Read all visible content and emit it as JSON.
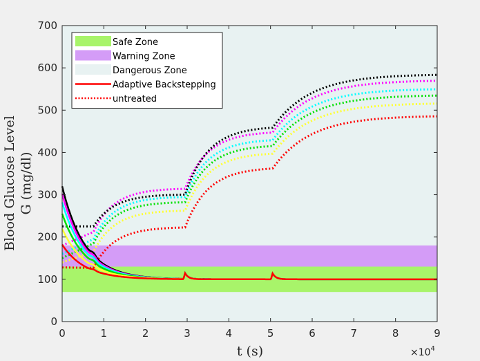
{
  "chart_data": {
    "type": "line",
    "title": "",
    "xlabel": "t (s)",
    "ylabel_line1": "Blood Glucose Level",
    "ylabel_line2": "G (mg/dl)",
    "x_exponent_label": "×10",
    "x_exponent_power": "4",
    "xlim": [
      0,
      9
    ],
    "ylim": [
      0,
      700
    ],
    "xticks": [
      "0",
      "1",
      "2",
      "3",
      "4",
      "5",
      "6",
      "7",
      "8",
      "9"
    ],
    "yticks": [
      "0",
      "100",
      "200",
      "300",
      "400",
      "500",
      "600",
      "700"
    ],
    "grid": false,
    "legend_position": "top-left",
    "zones": [
      {
        "name": "Safe Zone",
        "y0": 70,
        "y1": 130,
        "color": "#a8f46a"
      },
      {
        "name": "Warning Zone",
        "y0": 130,
        "y1": 180,
        "color": "#d49cf7"
      },
      {
        "name": "Dangerous Zone",
        "y0": 0,
        "y1": 700,
        "color": "#e8f2f2"
      }
    ],
    "legend": [
      {
        "label": "Safe Zone",
        "kind": "patch",
        "color": "#a8f46a"
      },
      {
        "label": "Warning Zone",
        "kind": "patch",
        "color": "#d49cf7"
      },
      {
        "label": "Dangerous Zone",
        "kind": "patch",
        "color": "#e8f2f2"
      },
      {
        "label": "Adaptive Backstepping",
        "kind": "solid",
        "color": "#ff0000"
      },
      {
        "label": "untreated",
        "kind": "dotted",
        "color": "#ff0000"
      }
    ],
    "untreated_series": [
      {
        "color": "#ff0000",
        "initial": 128,
        "plateaus": [
          127,
          245,
          365,
          487
        ]
      },
      {
        "color": "#ffff33",
        "initial": 140,
        "plateaus": [
          165,
          285,
          400,
          517
        ]
      },
      {
        "color": "#00e000",
        "initial": 150,
        "plateaus": [
          185,
          305,
          418,
          536
        ]
      },
      {
        "color": "#00ffff",
        "initial": 160,
        "plateaus": [
          195,
          318,
          432,
          551
        ]
      },
      {
        "color": "#ff00ff",
        "initial": 180,
        "plateaus": [
          212,
          338,
          450,
          571
        ]
      },
      {
        "color": "#000000",
        "initial": 225,
        "plateaus": [
          225,
          318,
          462,
          585
        ]
      }
    ],
    "controlled_series": [
      {
        "color": "#000000",
        "initial": 320,
        "final": 100
      },
      {
        "color": "#ff00ff",
        "initial": 302,
        "final": 100
      },
      {
        "color": "#00ffff",
        "initial": 282,
        "final": 100
      },
      {
        "color": "#00e000",
        "initial": 255,
        "final": 100
      },
      {
        "color": "#ffff33",
        "initial": 220,
        "final": 100
      },
      {
        "color": "#ff0000",
        "initial": 182,
        "final": 100
      }
    ],
    "meal_times_e4": [
      0.75,
      2.95,
      5.05
    ]
  }
}
